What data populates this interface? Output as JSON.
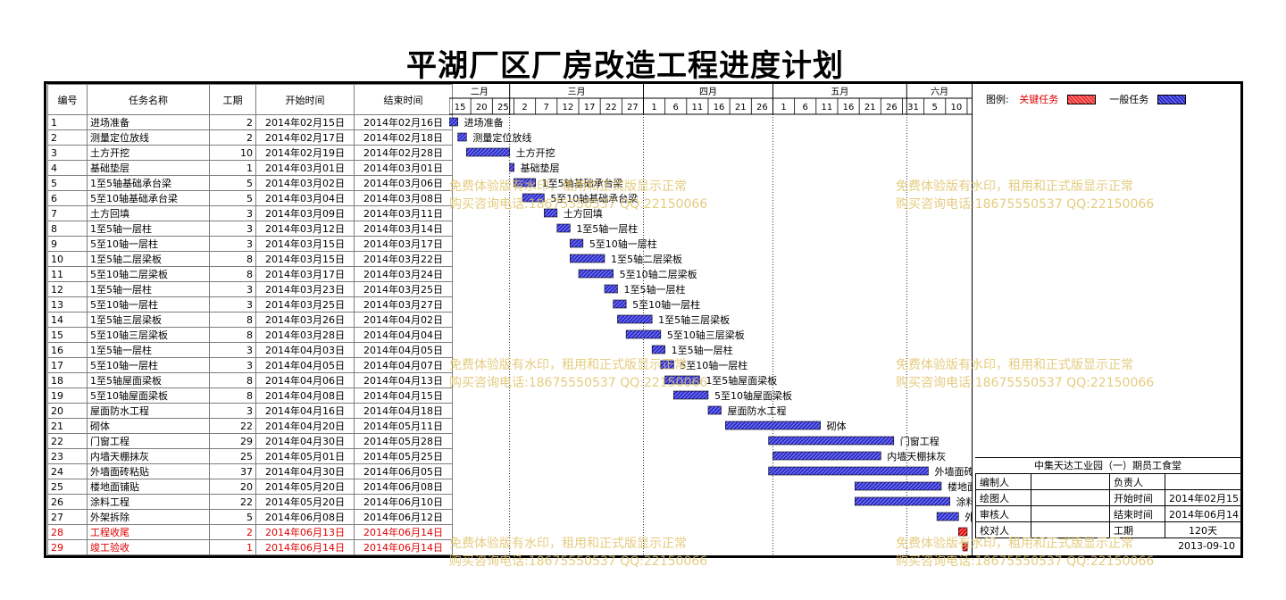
{
  "title": "平湖厂区厂房改造工程进度计划",
  "headers": {
    "id": "编号",
    "name": "任务名称",
    "duration": "工期",
    "start": "开始时间",
    "end": "结束时间"
  },
  "legend": {
    "label": "图例:",
    "critical": "关键任务",
    "normal": "一般任务",
    "critical_color": "#e00000",
    "normal_color": "#2a2acc"
  },
  "timeline": {
    "months": [
      "二月",
      "三月",
      "四月",
      "五月",
      "六月"
    ],
    "ticks": [
      "15",
      "20",
      "25",
      "2",
      "7",
      "12",
      "17",
      "22",
      "27",
      "1",
      "6",
      "11",
      "16",
      "21",
      "26",
      "1",
      "6",
      "11",
      "16",
      "21",
      "26",
      "31",
      "5",
      "10",
      "15",
      "20",
      "25"
    ]
  },
  "info": {
    "project": "中集天达工业园（一）期员工食堂",
    "rows": [
      [
        "编制人",
        "",
        "负责人",
        ""
      ],
      [
        "绘图人",
        "",
        "开始时间",
        "2014年02月15日"
      ],
      [
        "审核人",
        "",
        "结束时间",
        "2014年06月14日"
      ],
      [
        "校对人",
        "",
        "工期",
        "120天"
      ]
    ],
    "date": "2013-09-10"
  },
  "watermark": {
    "line1": "免费体验版有水印，租用和正式版显示正常",
    "line2": "购买咨询电话:18675550537 QQ:22150066"
  },
  "chart_data": {
    "type": "gantt",
    "title": "平湖厂区厂房改造工程进度计划",
    "x_range": [
      "2014-02-15",
      "2014-06-26"
    ],
    "tasks": [
      {
        "id": "1",
        "name": "进场准备",
        "duration": 2,
        "start": "2014年02月15日",
        "end": "2014年02月16日",
        "critical": false
      },
      {
        "id": "2",
        "name": "测量定位放线",
        "duration": 2,
        "start": "2014年02月17日",
        "end": "2014年02月18日",
        "critical": false
      },
      {
        "id": "3",
        "name": "土方开挖",
        "duration": 10,
        "start": "2014年02月19日",
        "end": "2014年02月28日",
        "critical": false
      },
      {
        "id": "4",
        "name": "基础垫层",
        "duration": 1,
        "start": "2014年03月01日",
        "end": "2014年03月01日",
        "critical": false
      },
      {
        "id": "5",
        "name": "1至5轴基础承台梁",
        "duration": 5,
        "start": "2014年03月02日",
        "end": "2014年03月06日",
        "critical": false
      },
      {
        "id": "6",
        "name": "5至10轴基础承台梁",
        "duration": 5,
        "start": "2014年03月04日",
        "end": "2014年03月08日",
        "critical": false
      },
      {
        "id": "7",
        "name": "土方回填",
        "duration": 3,
        "start": "2014年03月09日",
        "end": "2014年03月11日",
        "critical": false
      },
      {
        "id": "8",
        "name": "1至5轴一层柱",
        "duration": 3,
        "start": "2014年03月12日",
        "end": "2014年03月14日",
        "critical": false
      },
      {
        "id": "9",
        "name": "5至10轴一层柱",
        "duration": 3,
        "start": "2014年03月15日",
        "end": "2014年03月17日",
        "critical": false
      },
      {
        "id": "10",
        "name": "1至5轴二层梁板",
        "duration": 8,
        "start": "2014年03月15日",
        "end": "2014年03月22日",
        "critical": false
      },
      {
        "id": "11",
        "name": "5至10轴二层梁板",
        "duration": 8,
        "start": "2014年03月17日",
        "end": "2014年03月24日",
        "critical": false
      },
      {
        "id": "12",
        "name": "1至5轴一层柱",
        "duration": 3,
        "start": "2014年03月23日",
        "end": "2014年03月25日",
        "critical": false
      },
      {
        "id": "13",
        "name": "5至10轴一层柱",
        "duration": 3,
        "start": "2014年03月25日",
        "end": "2014年03月27日",
        "critical": false
      },
      {
        "id": "14",
        "name": "1至5轴三层梁板",
        "duration": 8,
        "start": "2014年03月26日",
        "end": "2014年04月02日",
        "critical": false
      },
      {
        "id": "15",
        "name": "5至10轴三层梁板",
        "duration": 8,
        "start": "2014年03月28日",
        "end": "2014年04月04日",
        "critical": false
      },
      {
        "id": "16",
        "name": "1至5轴一层柱",
        "duration": 3,
        "start": "2014年04月03日",
        "end": "2014年04月05日",
        "critical": false
      },
      {
        "id": "17",
        "name": "5至10轴一层柱",
        "duration": 3,
        "start": "2014年04月05日",
        "end": "2014年04月07日",
        "critical": false
      },
      {
        "id": "18",
        "name": "1至5轴屋面梁板",
        "duration": 8,
        "start": "2014年04月06日",
        "end": "2014年04月13日",
        "critical": false
      },
      {
        "id": "19",
        "name": "5至10轴屋面梁板",
        "duration": 8,
        "start": "2014年04月08日",
        "end": "2014年04月15日",
        "critical": false
      },
      {
        "id": "20",
        "name": "屋面防水工程",
        "duration": 3,
        "start": "2014年04月16日",
        "end": "2014年04月18日",
        "critical": false
      },
      {
        "id": "21",
        "name": "砌体",
        "duration": 22,
        "start": "2014年04月20日",
        "end": "2014年05月11日",
        "critical": false
      },
      {
        "id": "22",
        "name": "门窗工程",
        "duration": 29,
        "start": "2014年04月30日",
        "end": "2014年05月28日",
        "critical": false
      },
      {
        "id": "23",
        "name": "内墙天棚抹灰",
        "duration": 25,
        "start": "2014年05月01日",
        "end": "2014年05月25日",
        "critical": false
      },
      {
        "id": "24",
        "name": "外墙面砖粘贴",
        "duration": 37,
        "start": "2014年04月30日",
        "end": "2014年06月05日",
        "critical": false
      },
      {
        "id": "25",
        "name": "楼地面铺贴",
        "duration": 20,
        "start": "2014年05月20日",
        "end": "2014年06月08日",
        "critical": false
      },
      {
        "id": "26",
        "name": "涂料工程",
        "duration": 22,
        "start": "2014年05月20日",
        "end": "2014年06月10日",
        "critical": false
      },
      {
        "id": "27",
        "name": "外架拆除",
        "duration": 5,
        "start": "2014年06月08日",
        "end": "2014年06月12日",
        "critical": false
      },
      {
        "id": "28",
        "name": "工程收尾",
        "duration": 2,
        "start": "2014年06月13日",
        "end": "2014年06月14日",
        "critical": true
      },
      {
        "id": "29",
        "name": "竣工验收",
        "duration": 1,
        "start": "2014年06月14日",
        "end": "2014年06月14日",
        "critical": true
      }
    ]
  }
}
